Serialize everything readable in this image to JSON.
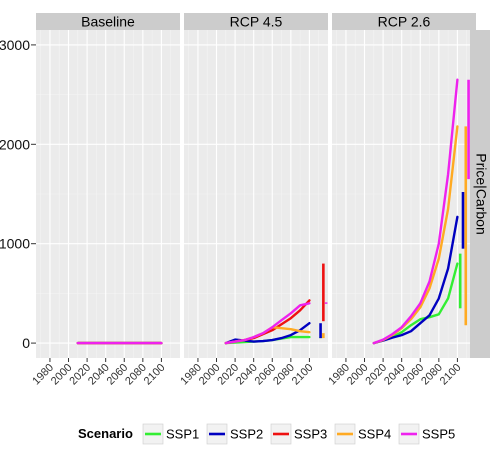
{
  "chart_data": {
    "type": "line",
    "facet_strip_right": "Price|Carbon",
    "panels": [
      {
        "title": "Baseline",
        "series": [
          {
            "name": "SSP1",
            "x": [
              2010,
              2100
            ],
            "y": [
              0,
              0
            ]
          },
          {
            "name": "SSP2",
            "x": [
              2010,
              2100
            ],
            "y": [
              0,
              0
            ]
          },
          {
            "name": "SSP3",
            "x": [
              2010,
              2100
            ],
            "y": [
              0,
              0
            ]
          },
          {
            "name": "SSP4",
            "x": [
              2010,
              2100
            ],
            "y": [
              0,
              0
            ]
          },
          {
            "name": "SSP5",
            "x": [
              2010,
              2100
            ],
            "y": [
              0,
              0
            ]
          }
        ],
        "ranges": []
      },
      {
        "title": "RCP 4.5",
        "series": [
          {
            "name": "SSP1",
            "x": [
              2010,
              2020,
              2030,
              2040,
              2050,
              2060,
              2070,
              2080,
              2090,
              2100
            ],
            "y": [
              0,
              5,
              10,
              15,
              20,
              30,
              45,
              60,
              60,
              60
            ]
          },
          {
            "name": "SSP2",
            "x": [
              2010,
              2020,
              2030,
              2040,
              2050,
              2060,
              2070,
              2080,
              2090,
              2100
            ],
            "y": [
              0,
              35,
              25,
              15,
              20,
              30,
              50,
              80,
              130,
              200
            ]
          },
          {
            "name": "SSP3",
            "x": [
              2010,
              2020,
              2030,
              2040,
              2050,
              2060,
              2070,
              2080,
              2090,
              2100
            ],
            "y": [
              0,
              15,
              30,
              50,
              90,
              130,
              190,
              250,
              330,
              430
            ]
          },
          {
            "name": "SSP4",
            "x": [
              2010,
              2020,
              2030,
              2040,
              2050,
              2060,
              2070,
              2080,
              2090,
              2100
            ],
            "y": [
              0,
              15,
              30,
              60,
              100,
              160,
              150,
              140,
              120,
              110
            ]
          },
          {
            "name": "SSP5",
            "x": [
              2010,
              2020,
              2030,
              2040,
              2050,
              2060,
              2070,
              2080,
              2090,
              2100
            ],
            "y": [
              0,
              15,
              30,
              60,
              100,
              160,
              230,
              300,
              380,
              400
            ]
          }
        ],
        "ranges": [
          {
            "name": "SSP1",
            "x": 2112,
            "ymin": 50,
            "ymax": 60
          },
          {
            "name": "SSP2",
            "x": 2112,
            "ymin": 50,
            "ymax": 200
          },
          {
            "name": "SSP3",
            "x": 2115,
            "ymin": 220,
            "ymax": 800
          },
          {
            "name": "SSP4",
            "x": 2115,
            "ymin": 50,
            "ymax": 100
          },
          {
            "name": "SSP5",
            "x": 2118,
            "ymin": 395,
            "ymax": 410
          }
        ]
      },
      {
        "title": "RCP 2.6",
        "series": [
          {
            "name": "SSP1",
            "x": [
              2010,
              2020,
              2030,
              2040,
              2050,
              2060,
              2070,
              2080,
              2090,
              2100
            ],
            "y": [
              0,
              30,
              60,
              110,
              180,
              240,
              260,
              290,
              450,
              800
            ]
          },
          {
            "name": "SSP2",
            "x": [
              2010,
              2020,
              2030,
              2040,
              2050,
              2060,
              2070,
              2080,
              2090,
              2100
            ],
            "y": [
              0,
              25,
              55,
              80,
              120,
              200,
              280,
              450,
              750,
              1270
            ]
          },
          {
            "name": "SSP3",
            "x": [],
            "y": []
          },
          {
            "name": "SSP4",
            "x": [
              2010,
              2020,
              2030,
              2040,
              2050,
              2060,
              2070,
              2080,
              2090,
              2100
            ],
            "y": [
              0,
              30,
              80,
              150,
              240,
              360,
              550,
              850,
              1350,
              2180
            ]
          },
          {
            "name": "SSP5",
            "x": [
              2010,
              2020,
              2030,
              2040,
              2050,
              2060,
              2070,
              2080,
              2090,
              2100
            ],
            "y": [
              0,
              35,
              90,
              160,
              270,
              400,
              620,
              1000,
              1700,
              2650
            ]
          }
        ],
        "ranges": [
          {
            "name": "SSP1",
            "x": 2103,
            "ymin": 350,
            "ymax": 900
          },
          {
            "name": "SSP2",
            "x": 2106,
            "ymin": 950,
            "ymax": 1520
          },
          {
            "name": "SSP4",
            "x": 2109,
            "ymin": 180,
            "ymax": 2180
          },
          {
            "name": "SSP5",
            "x": 2112,
            "ymin": 1650,
            "ymax": 2650
          }
        ]
      }
    ],
    "x_ticks": [
      1980,
      2000,
      2020,
      2040,
      2060,
      2080,
      2100
    ],
    "xlim": [
      1965,
      2120
    ],
    "y_ticks": [
      0,
      1000,
      2000,
      3000
    ],
    "ylim": [
      -150,
      3150
    ],
    "xlabel": "",
    "ylabel": "",
    "grid": true,
    "legend": {
      "title": "Scenario",
      "position": "bottom",
      "entries": [
        "SSP1",
        "SSP2",
        "SSP3",
        "SSP4",
        "SSP5"
      ]
    },
    "colors": {
      "SSP1": "#33ee33",
      "SSP2": "#0000c0",
      "SSP3": "#ee1111",
      "SSP4": "#ffaa22",
      "SSP5": "#ee22ee"
    }
  }
}
